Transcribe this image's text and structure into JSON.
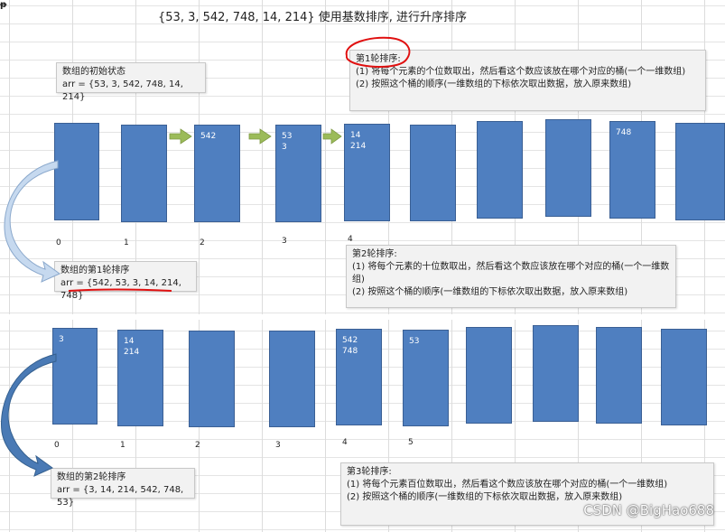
{
  "corner_mark": "ᵽ",
  "title": "{53, 3, 542, 748, 14, 214} 使用基数排序, 进行升序排序",
  "initial_state": {
    "heading": "数组的初始状态",
    "value": "arr = {53, 3, 542, 748, 14, 214}"
  },
  "round1": {
    "note": {
      "heading": "第1轮排序:",
      "step1": "(1) 将每个元素的个位数取出，然后看这个数应该放在哪个对应的桶(一个一维数组)",
      "step2": "(2) 按照这个桶的顺序(一维数组的下标依次取出数据，放入原来数组)"
    },
    "buckets": [
      {
        "values": []
      },
      {
        "values": []
      },
      {
        "values": [
          "542"
        ]
      },
      {
        "values": [
          "53",
          "3"
        ]
      },
      {
        "values": [
          "14",
          "214"
        ]
      },
      {
        "values": []
      },
      {
        "values": []
      },
      {
        "values": []
      },
      {
        "values": [
          "748"
        ]
      },
      {
        "values": []
      }
    ],
    "indices": [
      "0",
      "1",
      "2",
      "3",
      "4"
    ],
    "result_heading": "数组的第1轮排序",
    "result_value": "arr = {542, 53, 3, 14, 214, 748}"
  },
  "round2": {
    "note": {
      "heading": "第2轮排序:",
      "step1": "(1) 将每个元素的十位数取出，然后看这个数应该放在哪个对应的桶(一个一维数组)",
      "step2": "(2) 按照这个桶的顺序(一维数组的下标依次取出数据，放入原来数组)"
    },
    "buckets": [
      {
        "values": [
          "3"
        ]
      },
      {
        "values": [
          "14",
          "214"
        ]
      },
      {
        "values": []
      },
      {
        "values": []
      },
      {
        "values": [
          "542",
          "748"
        ]
      },
      {
        "values": [
          "53"
        ]
      },
      {
        "values": []
      },
      {
        "values": []
      },
      {
        "values": []
      },
      {
        "values": []
      }
    ],
    "indices": [
      "0",
      "1",
      "2",
      "3",
      "4",
      "5"
    ],
    "result_heading": "数组的第2轮排序",
    "result_value": "arr = {3, 14, 214, 542, 748, 53}"
  },
  "round3": {
    "note": {
      "heading": "第3轮排序:",
      "step1": "(1) 将每个元素百位数取出，然后看这个数应该放在哪个对应的桶(一个一维数组)",
      "step2": "(2) 按照这个桶的顺序(一维数组的下标依次取出数据，放入原来数组)"
    }
  },
  "watermark": "CSDN @BigHao688",
  "colors": {
    "bucket_fill": "#4f7fc0",
    "green_arrow": "#9bbb59",
    "curved_arrow_light": "#b9cde5",
    "curved_arrow_dark": "#4a7ab5",
    "annotation_red": "#e01010"
  }
}
